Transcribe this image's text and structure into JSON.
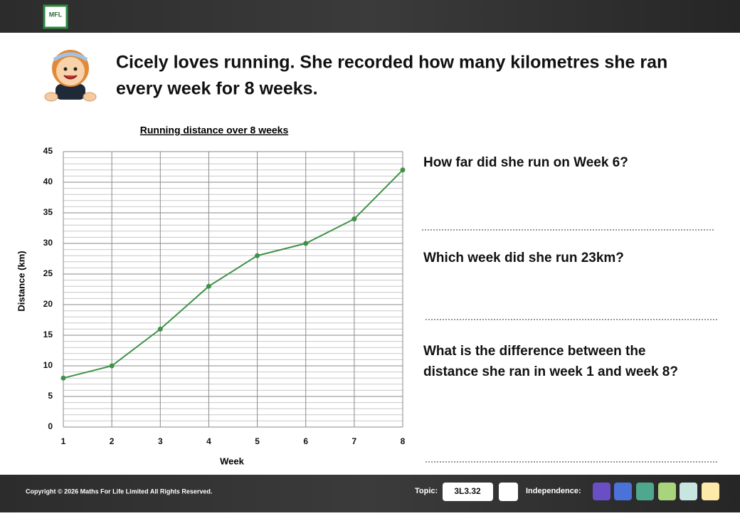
{
  "header": {
    "logo": "MFL"
  },
  "intro": [
    "Cicely loves running. She recorded how many kilometres she ran",
    "every week for 8 weeks."
  ],
  "chart_data": {
    "type": "line",
    "title": "Running distance over 8 weeks",
    "xlabel": "Week",
    "ylabel": "Distance (km)",
    "x": [
      1,
      2,
      3,
      4,
      5,
      6,
      7,
      8
    ],
    "values": [
      8,
      10,
      16,
      23,
      28,
      30,
      34,
      42
    ],
    "color": "#3f9147",
    "xlim": [
      1,
      8
    ],
    "xticks": [
      1,
      2,
      3,
      4,
      5,
      6,
      7,
      8
    ],
    "ylim": [
      0,
      45
    ],
    "yticks": [
      0,
      5,
      10,
      15,
      20,
      25,
      30,
      35,
      40,
      45
    ],
    "minor_yticks": [
      1,
      2,
      3,
      4,
      6,
      7,
      8,
      9,
      11,
      12,
      13,
      14,
      16,
      17,
      18,
      19,
      21,
      22,
      23,
      24,
      26,
      27,
      28,
      29,
      31,
      32,
      33,
      34,
      36,
      37,
      38,
      39,
      41,
      42,
      43,
      44
    ],
    "grid": true
  },
  "questions": [
    {
      "lines": [
        "How far did she run on Week 6?"
      ]
    },
    {
      "lines": [
        "Which week did she run 23km?"
      ]
    },
    {
      "lines": [
        "What is the difference between the",
        "distance she ran in week 1 and week 8?"
      ]
    }
  ],
  "footer": {
    "copyright": "Copyright © 2026 Maths For Life Limited All Rights Reserved.",
    "topic_label": "Topic:",
    "topic_code": "3L3.32",
    "independence_label": "Independence:"
  }
}
